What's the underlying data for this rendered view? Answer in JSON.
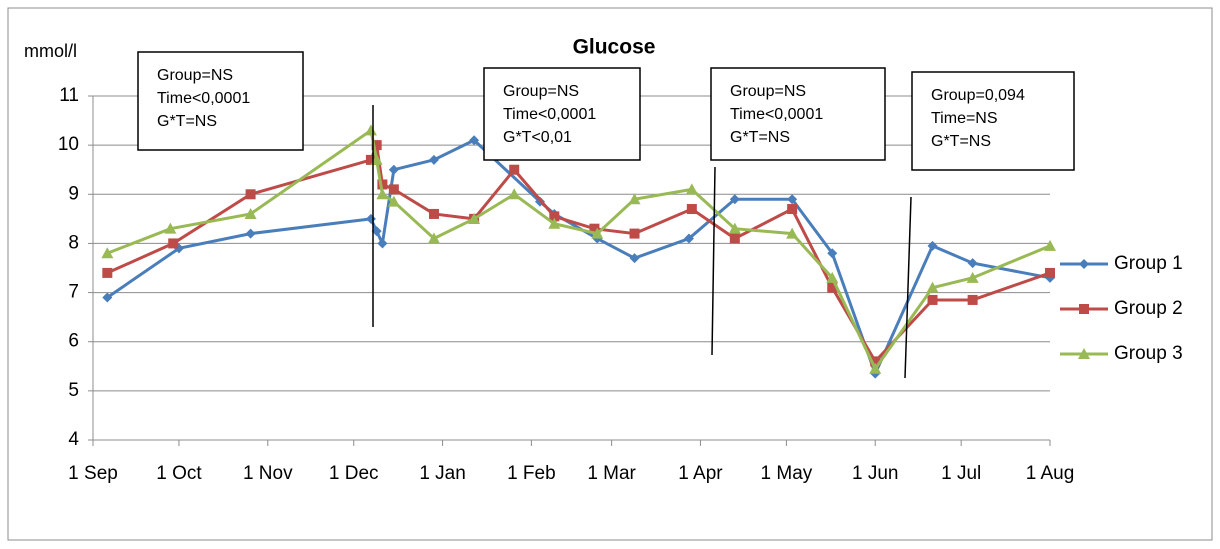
{
  "chart_data": {
    "type": "line",
    "title": "Glucose",
    "ylabel": "mmol/l",
    "xlim": [
      0,
      334
    ],
    "xticks": [
      {
        "value": 0,
        "label": "1 Sep"
      },
      {
        "value": 30,
        "label": "1 Oct"
      },
      {
        "value": 61,
        "label": "1 Nov"
      },
      {
        "value": 91,
        "label": "1 Dec"
      },
      {
        "value": 122,
        "label": "1 Jan"
      },
      {
        "value": 153,
        "label": "1 Feb"
      },
      {
        "value": 181,
        "label": "1 Mar"
      },
      {
        "value": 212,
        "label": "1 Apr"
      },
      {
        "value": 242,
        "label": "1 May"
      },
      {
        "value": 273,
        "label": "1 Jun"
      },
      {
        "value": 303,
        "label": "1 Jul"
      },
      {
        "value": 334,
        "label": "1 Aug"
      }
    ],
    "ylim": [
      4,
      11
    ],
    "yticks": [
      4,
      5,
      6,
      7,
      8,
      9,
      10,
      11
    ],
    "grid": true,
    "legend": "right",
    "series": [
      {
        "name": "Group 1",
        "color": "#4a7ebb",
        "marker": "diamond",
        "x": [
          5,
          30,
          55,
          97,
          99,
          101,
          105,
          119,
          133,
          156,
          161,
          176,
          189,
          208,
          224,
          244,
          258,
          273,
          293,
          307,
          334
        ],
        "values": [
          6.9,
          7.9,
          8.2,
          8.5,
          8.25,
          8.0,
          9.5,
          9.7,
          10.1,
          8.85,
          8.6,
          8.1,
          7.7,
          8.1,
          8.9,
          8.9,
          7.8,
          5.35,
          7.95,
          7.6,
          7.3
        ]
      },
      {
        "name": "Group 2",
        "color": "#be4b48",
        "marker": "square",
        "x": [
          5,
          28,
          55,
          97,
          99,
          101,
          105,
          119,
          133,
          147,
          161,
          175,
          189,
          209,
          224,
          244,
          258,
          273,
          293,
          307,
          334
        ],
        "values": [
          7.4,
          8.0,
          9.0,
          9.7,
          10.0,
          9.2,
          9.1,
          8.6,
          8.5,
          9.5,
          8.55,
          8.3,
          8.2,
          8.7,
          8.1,
          8.7,
          7.1,
          5.6,
          6.85,
          6.85,
          7.4
        ]
      },
      {
        "name": "Group 3",
        "color": "#98b954",
        "marker": "triangle",
        "x": [
          5,
          27,
          55,
          97,
          99,
          101,
          105,
          119,
          133,
          147,
          161,
          176,
          189,
          209,
          224,
          244,
          258,
          273,
          293,
          307,
          334
        ],
        "values": [
          7.8,
          8.3,
          8.6,
          10.3,
          9.7,
          9.0,
          8.85,
          8.1,
          8.5,
          9.0,
          8.4,
          8.2,
          8.9,
          9.1,
          8.3,
          8.2,
          7.3,
          5.45,
          7.1,
          7.3,
          7.95
        ]
      }
    ],
    "annotations": [
      [
        "Group=NS",
        "Time<0,0001",
        "G*T=NS"
      ],
      [
        "Group=NS",
        "Time<0,0001",
        "G*T<0,01"
      ],
      [
        "Group=NS",
        "Time<0,0001",
        "G*T=NS"
      ],
      [
        "Group=0,094",
        "Time=NS",
        "G*T=NS"
      ]
    ]
  }
}
